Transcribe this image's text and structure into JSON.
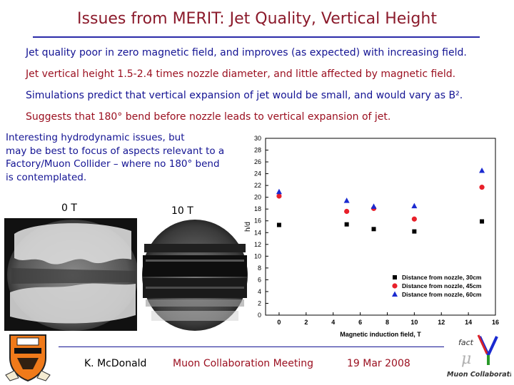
{
  "slide": {
    "title": "Issues from MERIT: Jet Quality, Vertical Height",
    "bullets": [
      "Jet quality poor in zero magnetic field, and improves (as expected) with increasing field.",
      "Jet vertical height 1.5-2.4 times nozzle diameter, and little affected by magnetic field.",
      "Simulations predict that vertical expansion of jet would be small, and would vary as B².",
      "Suggests that 180° bend before nozzle leads to vertical expansion of jet."
    ],
    "intro": "     Interesting hydrodynamic issues, but\nmay be best to focus of aspects relevant to a\nFactory/Muon Collider – where no 180° bend\nis contemplated."
  },
  "photos": {
    "left_label": "0 T",
    "right_label": "10 T"
  },
  "footer": {
    "author": "K. McDonald",
    "meeting": "Muon Collaboration Meeting",
    "date": "19 Mar 2008"
  },
  "logo": {
    "line1": "fact",
    "line2": "Muon Collaboration"
  },
  "colors": {
    "title": "#8b1a2b",
    "navy": "#131393",
    "series_30": "#000000",
    "series_45": "#e8202a",
    "series_60": "#1a2ad0"
  },
  "chart_data": {
    "type": "scatter",
    "xlabel": "Magnetic induction field, T",
    "ylabel": "h/d",
    "xlim": [
      -1,
      16
    ],
    "ylim": [
      0,
      30
    ],
    "xticks": [
      0,
      2,
      4,
      6,
      8,
      10,
      12,
      14,
      16
    ],
    "yticks": [
      0,
      2,
      4,
      6,
      8,
      10,
      12,
      14,
      16,
      18,
      20,
      22,
      24,
      26,
      28,
      30
    ],
    "legend_position": "bottom-right",
    "series": [
      {
        "name": "Distance from nozzle, 30cm",
        "marker": "square",
        "color": "#000000",
        "x": [
          0,
          5,
          7,
          10,
          15
        ],
        "y": [
          15.3,
          15.4,
          14.6,
          14.2,
          15.9
        ]
      },
      {
        "name": "Distance from nozzle, 45cm",
        "marker": "circle",
        "color": "#e8202a",
        "x": [
          0,
          5,
          7,
          10,
          15
        ],
        "y": [
          20.2,
          17.6,
          18.1,
          16.3,
          21.7
        ]
      },
      {
        "name": "Distance from nozzle, 60cm",
        "marker": "triangle",
        "color": "#1a2ad0",
        "x": [
          0,
          5,
          7,
          10,
          15
        ],
        "y": [
          20.9,
          19.4,
          18.4,
          18.5,
          24.5
        ]
      }
    ]
  }
}
